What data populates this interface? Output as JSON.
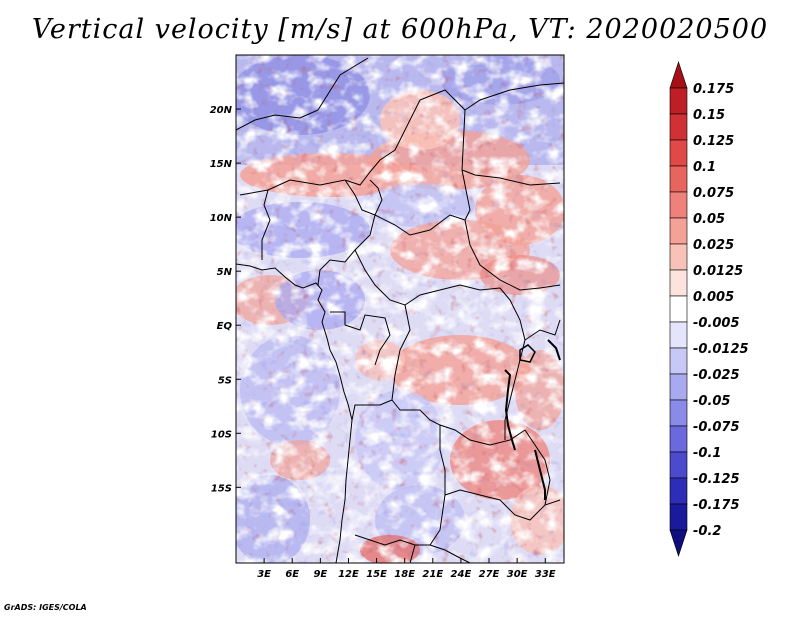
{
  "title": "Vertical velocity [m/s] at 600hPa, VT: 2020020500",
  "footer": "GrADS: IGES/COLA",
  "chart_data": {
    "type": "heatmap",
    "variable": "Vertical velocity",
    "units": "m/s",
    "level": "600hPa",
    "valid_time": "2020020500",
    "lon_range": [
      0,
      35
    ],
    "lat_range": [
      -22,
      25
    ],
    "x_ticks": [
      "3E",
      "6E",
      "9E",
      "12E",
      "15E",
      "18E",
      "21E",
      "24E",
      "27E",
      "30E",
      "33E"
    ],
    "x_tick_values": [
      3,
      6,
      9,
      12,
      15,
      18,
      21,
      24,
      27,
      30,
      33
    ],
    "y_ticks": [
      "20N",
      "15N",
      "10N",
      "5N",
      "EQ",
      "5S",
      "10S",
      "15S"
    ],
    "y_tick_values": [
      20,
      15,
      10,
      5,
      0,
      -5,
      -10,
      -15
    ],
    "colorbar": {
      "labels": [
        "0.175",
        "0.15",
        "0.125",
        "0.1",
        "0.075",
        "0.05",
        "0.025",
        "0.0125",
        "0.005",
        "-0.005",
        "-0.0125",
        "-0.025",
        "-0.05",
        "-0.075",
        "-0.1",
        "-0.125",
        "-0.175",
        "-0.2"
      ],
      "colors": [
        "#a50f15",
        "#be1f24",
        "#d03233",
        "#df4a46",
        "#e8655e",
        "#ef8278",
        "#f4a196",
        "#f9c2b8",
        "#fde3dd",
        "#ffffff",
        "#e4e4fb",
        "#c8c8f6",
        "#a9a9f0",
        "#8a8ae8",
        "#6a6ade",
        "#4b4bcd",
        "#2d2db8",
        "#1a1a9c",
        "#0e0e7e"
      ]
    }
  }
}
